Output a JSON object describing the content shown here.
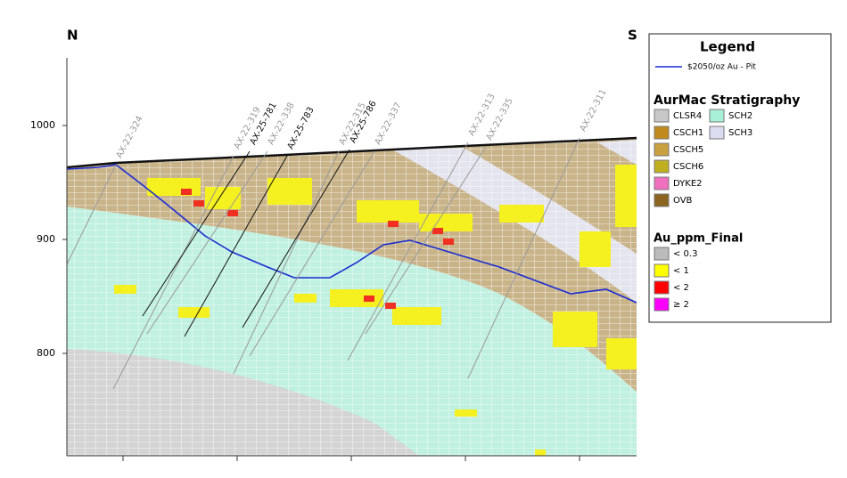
{
  "section": {
    "north": "N",
    "south": "S",
    "elevations": [
      1000,
      900,
      800
    ],
    "drillholes": [
      "AX-22-324",
      "AX-22-319",
      "AX-25-781",
      "AX-22-338",
      "AX-25-783",
      "AX-22-315",
      "AX-25-786",
      "AX-22-337",
      "AX-22-313",
      "AX-22-335",
      "AX-22-311"
    ]
  },
  "legend": {
    "title": "Legend",
    "pit": "$2050/oz Au - Pit",
    "stratigraphy_title": "AurMac Stratigraphy",
    "stratigraphy": [
      "CLSR4",
      "CSCH1",
      "CSCH5",
      "CSCH6",
      "DYKE2",
      "OVB",
      "SCH2",
      "SCH3"
    ],
    "grade_title": "Au_ppm_Final",
    "grades": [
      "< 0.3",
      "< 1",
      "< 2",
      "≥ 2"
    ]
  }
}
